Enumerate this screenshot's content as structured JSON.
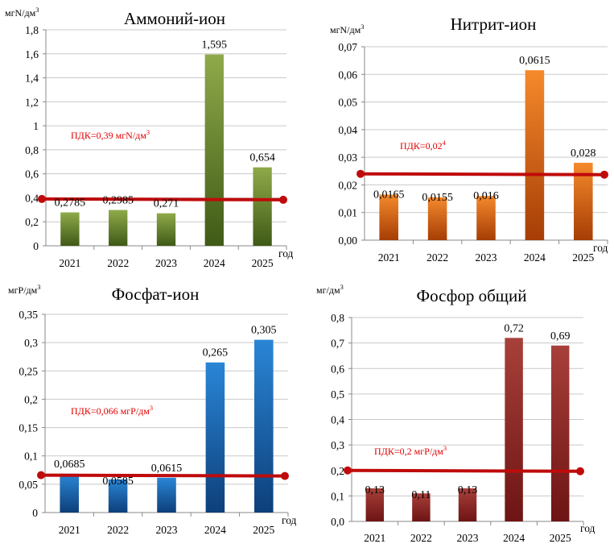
{
  "chart_data": [
    {
      "type": "bar",
      "title": "Аммоний-ион",
      "ylabel": "мгN/дм3",
      "xlabel": "год",
      "categories": [
        "2021",
        "2022",
        "2023",
        "2024",
        "2025"
      ],
      "series": [
        {
          "values": [
            0.2785,
            0.2985,
            0.271,
            1.595,
            0.654
          ]
        }
      ],
      "value_labels": [
        "0,2785",
        "0,2985",
        "0,271",
        "1,595",
        "0,654"
      ],
      "ylim": [
        0,
        1.8
      ],
      "yticks": [
        "0",
        "0,2",
        "0,4",
        "0,6",
        "0,8",
        "1",
        "1,2",
        "1,4",
        "1,6",
        "1,8"
      ],
      "reference_line": {
        "value": 0.39,
        "label": "ПДК=0,39 мгN/дм3",
        "color": "#c00000"
      },
      "bar_colors": [
        "#8faa4a",
        "#3f5a16"
      ],
      "grid": true
    },
    {
      "type": "bar",
      "title": "Нитрит-ион",
      "ylabel": "мгN/дм3",
      "xlabel": "год",
      "categories": [
        "2021",
        "2022",
        "2023",
        "2024",
        "2025"
      ],
      "series": [
        {
          "values": [
            0.0165,
            0.0155,
            0.016,
            0.0615,
            0.028
          ]
        }
      ],
      "value_labels": [
        "0,0165",
        "0,0155",
        "0,016",
        "0,0615",
        "0,028"
      ],
      "ylim": [
        0,
        0.07
      ],
      "yticks": [
        "0,00",
        "0,01",
        "0,02",
        "0,03",
        "0,04",
        "0,05",
        "0,06",
        "0,07"
      ],
      "reference_line": {
        "value": 0.024,
        "label": "ПДК=0,024",
        "color": "#c00000"
      },
      "bar_colors": [
        "#f58a2c",
        "#a63d05"
      ],
      "grid": true
    },
    {
      "type": "bar",
      "title": "Фосфат-ион",
      "ylabel": "мгР/дм3",
      "xlabel": "год",
      "categories": [
        "2021",
        "2022",
        "2023",
        "2024",
        "2025"
      ],
      "series": [
        {
          "values": [
            0.0685,
            0.0585,
            0.0615,
            0.265,
            0.305
          ]
        }
      ],
      "value_labels": [
        "0,0685",
        "0,0585",
        "0,0615",
        "0,265",
        "0,305"
      ],
      "ylim": [
        0,
        0.35
      ],
      "yticks": [
        "0",
        "0,05",
        "0,1",
        "0,15",
        "0,2",
        "0,25",
        "0,3",
        "0,35"
      ],
      "reference_line": {
        "value": 0.066,
        "label": "ПДК=0,066 мгР/дм3",
        "color": "#c00000"
      },
      "bar_colors": [
        "#2a86d6",
        "#0d3f7a"
      ],
      "grid": true
    },
    {
      "type": "bar",
      "title": "Фосфор общий",
      "ylabel": "мг/дм3",
      "xlabel": "год",
      "categories": [
        "2021",
        "2022",
        "2023",
        "2024",
        "2025"
      ],
      "series": [
        {
          "values": [
            0.13,
            0.11,
            0.13,
            0.72,
            0.69
          ]
        }
      ],
      "value_labels": [
        "0,13",
        "0,11",
        "0,13",
        "0,72",
        "0,69"
      ],
      "ylim": [
        0,
        0.8
      ],
      "yticks": [
        "0,0",
        "0,1",
        "0,2",
        "0,3",
        "0,4",
        "0,5",
        "0,6",
        "0,7",
        "0,8"
      ],
      "reference_line": {
        "value": 0.2,
        "label": "ПДК=0,2 мгР/дм3",
        "color": "#c00000"
      },
      "bar_colors": [
        "#a8403a",
        "#6d1414"
      ],
      "grid": true
    }
  ]
}
